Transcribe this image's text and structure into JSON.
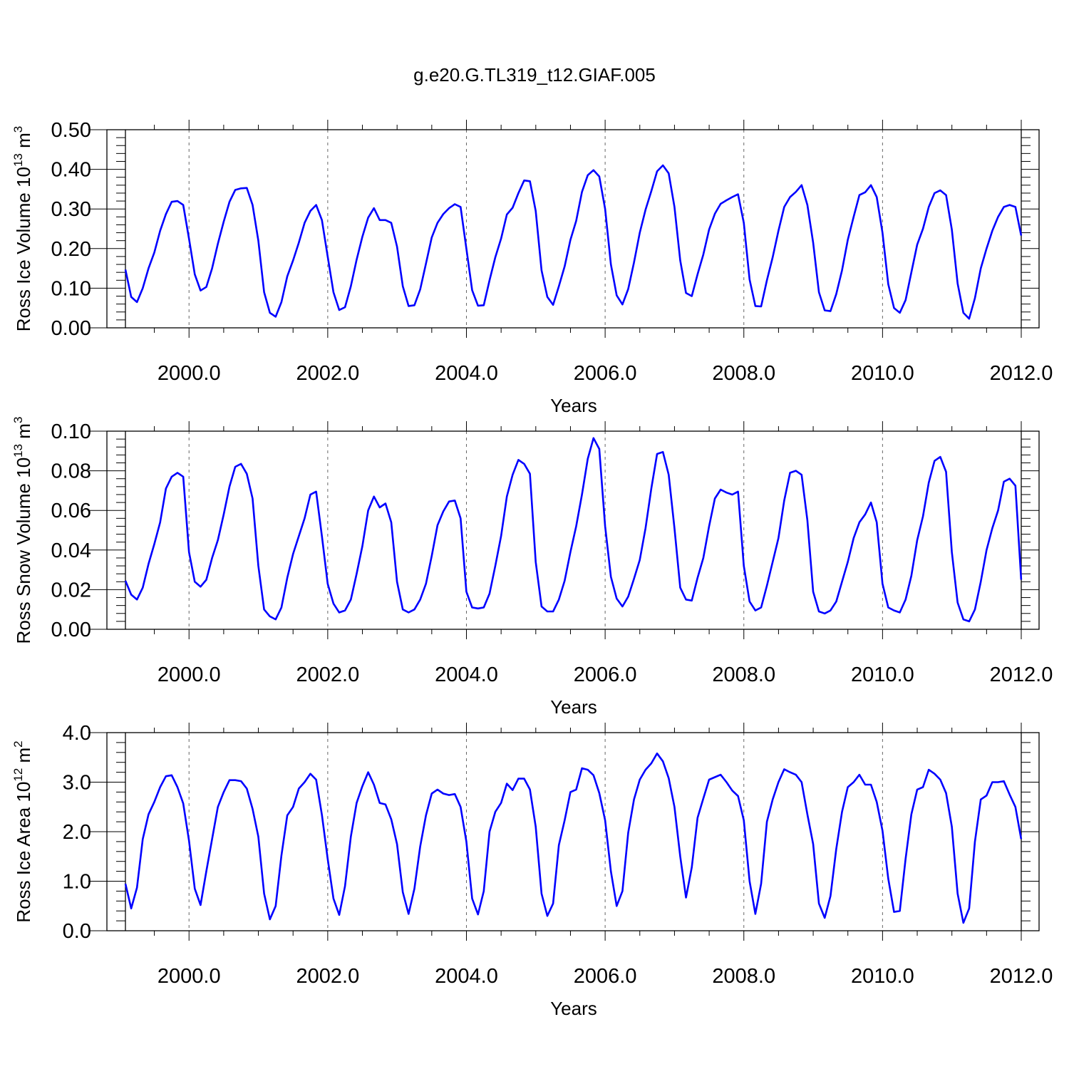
{
  "title": "g.e20.G.TL319_t12.GIAF.005",
  "line_color": "#0000ff",
  "chart_data": [
    {
      "type": "line",
      "xlabel": "Years",
      "ylabel_main": "Ross Ice Volume 10",
      "ylabel_exp": "13",
      "ylabel_unit": " m",
      "ylabel_unit_exp": "3",
      "xlim": [
        1999.083,
        2012.0
      ],
      "ylim": [
        0.0,
        0.5
      ],
      "xticks": [
        "2000.0",
        "2002.0",
        "2004.0",
        "2006.0",
        "2008.0",
        "2010.0",
        "2012.0"
      ],
      "xtick_values": [
        2000,
        2002,
        2004,
        2006,
        2008,
        2010,
        2012
      ],
      "yticks": [
        "0.00",
        "0.10",
        "0.20",
        "0.30",
        "0.40",
        "0.50"
      ],
      "ytick_values": [
        0.0,
        0.1,
        0.2,
        0.3,
        0.4,
        0.5
      ],
      "grid": "dashed vertical at major x ticks",
      "x_start": 1999.083,
      "x_step": 0.08333,
      "values": [
        0.147,
        0.078,
        0.065,
        0.1,
        0.15,
        0.19,
        0.245,
        0.287,
        0.318,
        0.32,
        0.31,
        0.225,
        0.135,
        0.094,
        0.103,
        0.15,
        0.212,
        0.268,
        0.318,
        0.348,
        0.352,
        0.353,
        0.31,
        0.22,
        0.09,
        0.038,
        0.028,
        0.065,
        0.13,
        0.17,
        0.215,
        0.265,
        0.295,
        0.31,
        0.272,
        0.18,
        0.09,
        0.045,
        0.052,
        0.105,
        0.172,
        0.23,
        0.278,
        0.302,
        0.272,
        0.272,
        0.265,
        0.205,
        0.105,
        0.055,
        0.057,
        0.097,
        0.162,
        0.228,
        0.265,
        0.287,
        0.302,
        0.312,
        0.305,
        0.2,
        0.095,
        0.056,
        0.057,
        0.12,
        0.178,
        0.225,
        0.286,
        0.303,
        0.34,
        0.372,
        0.37,
        0.295,
        0.145,
        0.078,
        0.058,
        0.105,
        0.155,
        0.222,
        0.27,
        0.343,
        0.385,
        0.398,
        0.382,
        0.3,
        0.16,
        0.082,
        0.059,
        0.098,
        0.165,
        0.24,
        0.298,
        0.345,
        0.395,
        0.41,
        0.39,
        0.305,
        0.17,
        0.088,
        0.08,
        0.135,
        0.185,
        0.248,
        0.288,
        0.313,
        0.322,
        0.33,
        0.337,
        0.265,
        0.122,
        0.055,
        0.054,
        0.12,
        0.178,
        0.245,
        0.305,
        0.33,
        0.343,
        0.36,
        0.31,
        0.215,
        0.09,
        0.044,
        0.042,
        0.085,
        0.145,
        0.222,
        0.28,
        0.335,
        0.342,
        0.36,
        0.33,
        0.24,
        0.11,
        0.05,
        0.038,
        0.07,
        0.14,
        0.21,
        0.25,
        0.305,
        0.34,
        0.347,
        0.335,
        0.248,
        0.112,
        0.038,
        0.023,
        0.075,
        0.15,
        0.2,
        0.245,
        0.28,
        0.305,
        0.31,
        0.305,
        0.233
      ]
    },
    {
      "type": "line",
      "xlabel": "Years",
      "ylabel_main": "Ross Snow Volume 10",
      "ylabel_exp": "13",
      "ylabel_unit": " m",
      "ylabel_unit_exp": "3",
      "xlim": [
        1999.083,
        2012.0
      ],
      "ylim": [
        0.0,
        0.1
      ],
      "xticks": [
        "2000.0",
        "2002.0",
        "2004.0",
        "2006.0",
        "2008.0",
        "2010.0",
        "2012.0"
      ],
      "xtick_values": [
        2000,
        2002,
        2004,
        2006,
        2008,
        2010,
        2012
      ],
      "yticks": [
        "0.00",
        "0.02",
        "0.04",
        "0.06",
        "0.08",
        "0.10"
      ],
      "ytick_values": [
        0.0,
        0.02,
        0.04,
        0.06,
        0.08,
        0.1
      ],
      "grid": "dashed vertical at major x ticks",
      "x_start": 1999.083,
      "x_step": 0.08333,
      "values": [
        0.0245,
        0.0175,
        0.015,
        0.021,
        0.033,
        0.043,
        0.054,
        0.071,
        0.077,
        0.079,
        0.077,
        0.039,
        0.024,
        0.0215,
        0.025,
        0.036,
        0.045,
        0.058,
        0.072,
        0.082,
        0.0835,
        0.0785,
        0.066,
        0.032,
        0.01,
        0.0065,
        0.005,
        0.011,
        0.026,
        0.038,
        0.047,
        0.056,
        0.068,
        0.0695,
        0.047,
        0.023,
        0.013,
        0.0085,
        0.0095,
        0.015,
        0.028,
        0.042,
        0.06,
        0.067,
        0.0615,
        0.0635,
        0.054,
        0.024,
        0.01,
        0.0085,
        0.01,
        0.015,
        0.023,
        0.037,
        0.0525,
        0.0595,
        0.0645,
        0.065,
        0.056,
        0.019,
        0.011,
        0.0105,
        0.011,
        0.018,
        0.032,
        0.047,
        0.067,
        0.078,
        0.0855,
        0.0835,
        0.0785,
        0.034,
        0.0115,
        0.009,
        0.009,
        0.015,
        0.0245,
        0.039,
        0.052,
        0.068,
        0.086,
        0.0965,
        0.091,
        0.052,
        0.0265,
        0.0155,
        0.0115,
        0.0165,
        0.0255,
        0.035,
        0.051,
        0.071,
        0.0885,
        0.0895,
        0.078,
        0.051,
        0.021,
        0.015,
        0.0145,
        0.026,
        0.036,
        0.052,
        0.066,
        0.0705,
        0.069,
        0.068,
        0.0695,
        0.032,
        0.014,
        0.0095,
        0.011,
        0.022,
        0.034,
        0.046,
        0.065,
        0.079,
        0.08,
        0.078,
        0.055,
        0.019,
        0.009,
        0.008,
        0.0095,
        0.014,
        0.024,
        0.034,
        0.046,
        0.054,
        0.058,
        0.064,
        0.054,
        0.023,
        0.011,
        0.0095,
        0.0085,
        0.015,
        0.027,
        0.045,
        0.057,
        0.074,
        0.085,
        0.087,
        0.0795,
        0.039,
        0.0135,
        0.005,
        0.004,
        0.01,
        0.024,
        0.04,
        0.051,
        0.06,
        0.0745,
        0.076,
        0.0725,
        0.025
      ]
    },
    {
      "type": "line",
      "xlabel": "Years",
      "ylabel_main": "Ross Ice Area 10",
      "ylabel_exp": "12",
      "ylabel_unit": " m",
      "ylabel_unit_exp": "2",
      "xlim": [
        1999.083,
        2012.0
      ],
      "ylim": [
        0.0,
        4.0
      ],
      "xticks": [
        "2000.0",
        "2002.0",
        "2004.0",
        "2006.0",
        "2008.0",
        "2010.0",
        "2012.0"
      ],
      "xtick_values": [
        2000,
        2002,
        2004,
        2006,
        2008,
        2010,
        2012
      ],
      "yticks": [
        "0.0",
        "1.0",
        "2.0",
        "3.0",
        "4.0"
      ],
      "ytick_values": [
        0.0,
        1.0,
        2.0,
        3.0,
        4.0
      ],
      "grid": "dashed vertical at major x ticks",
      "x_start": 1999.083,
      "x_step": 0.08333,
      "values": [
        0.95,
        0.45,
        0.87,
        1.85,
        2.35,
        2.6,
        2.9,
        3.12,
        3.14,
        2.9,
        2.57,
        1.82,
        0.85,
        0.52,
        1.2,
        1.85,
        2.5,
        2.8,
        3.04,
        3.04,
        3.02,
        2.87,
        2.46,
        1.9,
        0.75,
        0.23,
        0.5,
        1.52,
        2.33,
        2.5,
        2.87,
        3.0,
        3.17,
        3.05,
        2.34,
        1.45,
        0.65,
        0.32,
        0.9,
        1.9,
        2.58,
        2.92,
        3.2,
        2.95,
        2.58,
        2.55,
        2.25,
        1.75,
        0.78,
        0.34,
        0.85,
        1.7,
        2.33,
        2.77,
        2.85,
        2.77,
        2.74,
        2.76,
        2.5,
        1.8,
        0.65,
        0.33,
        0.8,
        2.0,
        2.4,
        2.58,
        2.97,
        2.84,
        3.07,
        3.07,
        2.85,
        2.1,
        0.75,
        0.3,
        0.55,
        1.73,
        2.23,
        2.8,
        2.85,
        3.28,
        3.25,
        3.14,
        2.78,
        2.23,
        1.2,
        0.5,
        0.8,
        1.98,
        2.65,
        3.05,
        3.25,
        3.38,
        3.58,
        3.42,
        3.08,
        2.5,
        1.5,
        0.67,
        1.28,
        2.28,
        2.67,
        3.05,
        3.1,
        3.15,
        3.0,
        2.83,
        2.72,
        2.23,
        1.0,
        0.34,
        0.95,
        2.2,
        2.65,
        3.0,
        3.26,
        3.2,
        3.15,
        3.0,
        2.35,
        1.75,
        0.55,
        0.26,
        0.7,
        1.65,
        2.4,
        2.9,
        3.0,
        3.15,
        2.95,
        2.95,
        2.6,
        2.02,
        1.05,
        0.38,
        0.4,
        1.45,
        2.35,
        2.85,
        2.9,
        3.25,
        3.17,
        3.05,
        2.78,
        2.1,
        0.75,
        0.16,
        0.45,
        1.8,
        2.65,
        2.73,
        3.0,
        3.0,
        3.02,
        2.75,
        2.5,
        1.85
      ]
    }
  ]
}
